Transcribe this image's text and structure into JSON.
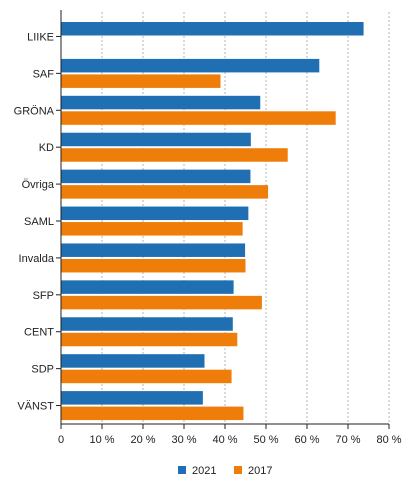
{
  "chart_data": {
    "type": "bar",
    "orientation": "horizontal",
    "categories": [
      "LIIKE",
      "SAF",
      "GRÖNA",
      "KD",
      "Övriga",
      "SAML",
      "Invalda",
      "SFP",
      "CENT",
      "SDP",
      "VÄNST"
    ],
    "series": [
      {
        "name": "2021",
        "color": "#1f6fb2",
        "values": [
          73.8,
          63.0,
          48.6,
          46.3,
          46.2,
          45.7,
          44.9,
          42.1,
          41.9,
          35.0,
          34.6
        ]
      },
      {
        "name": "2017",
        "color": "#ef7d0a",
        "values": [
          null,
          38.9,
          67.0,
          55.3,
          50.5,
          44.3,
          45.0,
          49.0,
          43.0,
          41.6,
          44.5
        ]
      }
    ],
    "xlim": [
      0,
      80
    ],
    "xticks": [
      "0",
      "10 %",
      "20 %",
      "30 %",
      "40 %",
      "50 %",
      "60 %",
      "70 %",
      "80 %"
    ],
    "grid": "vertical dashed",
    "legend_position": "bottom"
  }
}
